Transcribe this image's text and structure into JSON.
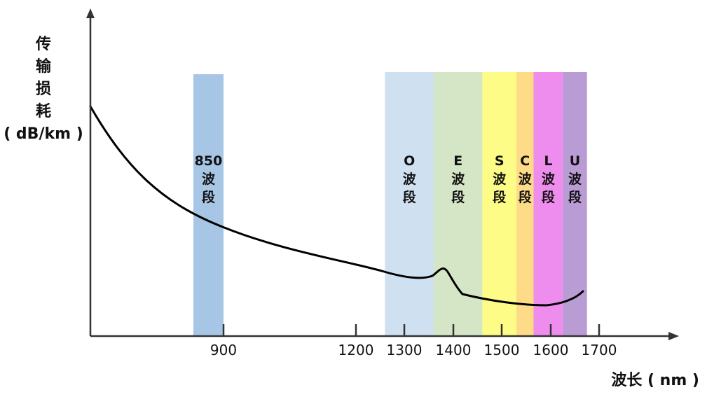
{
  "y_axis_title": {
    "lines": [
      "传",
      "输",
      "损",
      "耗"
    ],
    "unit": "( dB/km )"
  },
  "x_axis_title": "波长 ( nm )",
  "bands": [
    {
      "label": [
        "850",
        "波",
        "段"
      ],
      "from": 850,
      "to": 900,
      "color": "#a7c6e6"
    },
    {
      "label": [
        "O",
        "波",
        "段"
      ],
      "from": 1260,
      "to": 1360,
      "color": "#cfe0f1"
    },
    {
      "label": [
        "E",
        "波",
        "段"
      ],
      "from": 1360,
      "to": 1460,
      "color": "#d5e6c6"
    },
    {
      "label": [
        "S",
        "波",
        "段"
      ],
      "from": 1460,
      "to": 1530,
      "color": "#fcfc86"
    },
    {
      "label": [
        "C",
        "波",
        "段"
      ],
      "from": 1530,
      "to": 1565,
      "color": "#fedb87"
    },
    {
      "label": [
        "L",
        "波",
        "段"
      ],
      "from": 1565,
      "to": 1625,
      "color": "#ee8ded"
    },
    {
      "label": [
        "U",
        "波",
        "段"
      ],
      "from": 1625,
      "to": 1675,
      "color": "#b99cd4"
    }
  ],
  "ticks": [
    {
      "label": "900",
      "value": 900
    },
    {
      "label": "1200",
      "value": 1200
    },
    {
      "label": "1300",
      "value": 1300
    },
    {
      "label": "1400",
      "value": 1400
    },
    {
      "label": "1500",
      "value": 1500
    },
    {
      "label": "1600",
      "value": 1600
    },
    {
      "label": "1700",
      "value": 1700
    }
  ],
  "colors": {
    "axis": "#333333",
    "curve": "#000000"
  }
}
